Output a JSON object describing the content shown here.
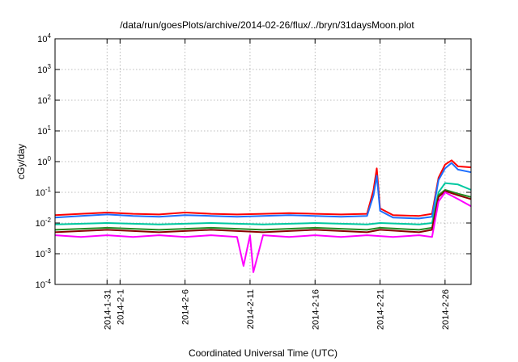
{
  "chart_data": {
    "type": "line",
    "title": "/data/run/goesPlots/archive/2014-02-26/flux/../bryn/31daysMoon.plot",
    "xlabel": "Coordinated Universal Time (UTC)",
    "ylabel": "cGy/day",
    "yscale": "log",
    "ylim": [
      0.0001,
      10000
    ],
    "y_ticks": [
      {
        "base": "10",
        "exp": "-4"
      },
      {
        "base": "10",
        "exp": "-3"
      },
      {
        "base": "10",
        "exp": "-2"
      },
      {
        "base": "10",
        "exp": "-1"
      },
      {
        "base": "10",
        "exp": "0"
      },
      {
        "base": "10",
        "exp": "1"
      },
      {
        "base": "10",
        "exp": "2"
      },
      {
        "base": "10",
        "exp": "3"
      },
      {
        "base": "10",
        "exp": "4"
      }
    ],
    "xlim": [
      "2014-01-27",
      "2014-02-28"
    ],
    "x_ticks": [
      "2014-1-31",
      "2014-2-1",
      "2014-2-6",
      "2014-2-11",
      "2014-2-16",
      "2014-2-21",
      "2014-2-26"
    ],
    "grid": true,
    "series": [
      {
        "color": "#ff0000",
        "x": [
          "2014-01-27",
          "2014-01-29",
          "2014-01-31",
          "2014-02-02",
          "2014-02-04",
          "2014-02-06",
          "2014-02-08",
          "2014-02-10",
          "2014-02-12",
          "2014-02-14",
          "2014-02-16",
          "2014-02-18",
          "2014-02-20",
          "2014-02-20 12:00",
          "2014-02-20 18:00",
          "2014-02-21",
          "2014-02-22",
          "2014-02-24",
          "2014-02-25",
          "2014-02-25 12:00",
          "2014-02-26",
          "2014-02-26 12:00",
          "2014-02-27",
          "2014-02-28"
        ],
        "values": [
          0.018,
          0.02,
          0.022,
          0.02,
          0.019,
          0.022,
          0.02,
          0.019,
          0.02,
          0.021,
          0.02,
          0.019,
          0.02,
          0.12,
          0.6,
          0.03,
          0.018,
          0.017,
          0.02,
          0.3,
          0.8,
          1.1,
          0.7,
          0.65
        ]
      },
      {
        "color": "#1e6fff",
        "x": [
          "2014-01-27",
          "2014-01-29",
          "2014-01-31",
          "2014-02-02",
          "2014-02-04",
          "2014-02-06",
          "2014-02-08",
          "2014-02-10",
          "2014-02-12",
          "2014-02-14",
          "2014-02-16",
          "2014-02-18",
          "2014-02-20",
          "2014-02-20 12:00",
          "2014-02-20 18:00",
          "2014-02-21",
          "2014-02-22",
          "2014-02-24",
          "2014-02-25",
          "2014-02-25 12:00",
          "2014-02-26",
          "2014-02-26 12:00",
          "2014-02-27",
          "2014-02-28"
        ],
        "values": [
          0.015,
          0.017,
          0.019,
          0.017,
          0.016,
          0.018,
          0.017,
          0.016,
          0.017,
          0.018,
          0.017,
          0.016,
          0.017,
          0.08,
          0.35,
          0.025,
          0.015,
          0.014,
          0.016,
          0.25,
          0.6,
          0.9,
          0.55,
          0.45
        ]
      },
      {
        "color": "#00c8a0",
        "x": [
          "2014-01-27",
          "2014-01-31",
          "2014-02-04",
          "2014-02-08",
          "2014-02-12",
          "2014-02-16",
          "2014-02-20",
          "2014-02-21",
          "2014-02-24",
          "2014-02-25",
          "2014-02-25 12:00",
          "2014-02-26",
          "2014-02-27",
          "2014-02-28"
        ],
        "values": [
          0.009,
          0.01,
          0.009,
          0.01,
          0.009,
          0.01,
          0.009,
          0.01,
          0.009,
          0.01,
          0.1,
          0.2,
          0.18,
          0.12
        ]
      },
      {
        "color": "#228b22",
        "x": [
          "2014-01-27",
          "2014-01-31",
          "2014-02-04",
          "2014-02-08",
          "2014-02-12",
          "2014-02-16",
          "2014-02-20",
          "2014-02-21",
          "2014-02-24",
          "2014-02-25",
          "2014-02-25 12:00",
          "2014-02-26",
          "2014-02-27",
          "2014-02-28"
        ],
        "values": [
          0.006,
          0.007,
          0.006,
          0.007,
          0.006,
          0.007,
          0.006,
          0.007,
          0.006,
          0.007,
          0.08,
          0.12,
          0.09,
          0.07
        ]
      },
      {
        "color": "#8b0000",
        "x": [
          "2014-01-27",
          "2014-01-31",
          "2014-02-04",
          "2014-02-08",
          "2014-02-12",
          "2014-02-16",
          "2014-02-20",
          "2014-02-21",
          "2014-02-24",
          "2014-02-25",
          "2014-02-25 12:00",
          "2014-02-26",
          "2014-02-27",
          "2014-02-28"
        ],
        "values": [
          0.005,
          0.006,
          0.005,
          0.006,
          0.005,
          0.006,
          0.005,
          0.006,
          0.005,
          0.006,
          0.07,
          0.11,
          0.08,
          0.06
        ]
      },
      {
        "color": "#ff00ff",
        "x": [
          "2014-01-27",
          "2014-01-29",
          "2014-01-31",
          "2014-02-02",
          "2014-02-04",
          "2014-02-06",
          "2014-02-08",
          "2014-02-10",
          "2014-02-10 12:00",
          "2014-02-11",
          "2014-02-11 06:00",
          "2014-02-12",
          "2014-02-14",
          "2014-02-16",
          "2014-02-18",
          "2014-02-20",
          "2014-02-22",
          "2014-02-24",
          "2014-02-25",
          "2014-02-25 12:00",
          "2014-02-26",
          "2014-02-27",
          "2014-02-28"
        ],
        "values": [
          0.004,
          0.0035,
          0.004,
          0.0035,
          0.004,
          0.0035,
          0.004,
          0.0035,
          0.0004,
          0.004,
          0.00025,
          0.004,
          0.0035,
          0.004,
          0.0035,
          0.004,
          0.0035,
          0.004,
          0.0035,
          0.05,
          0.1,
          0.06,
          0.035
        ]
      }
    ]
  }
}
